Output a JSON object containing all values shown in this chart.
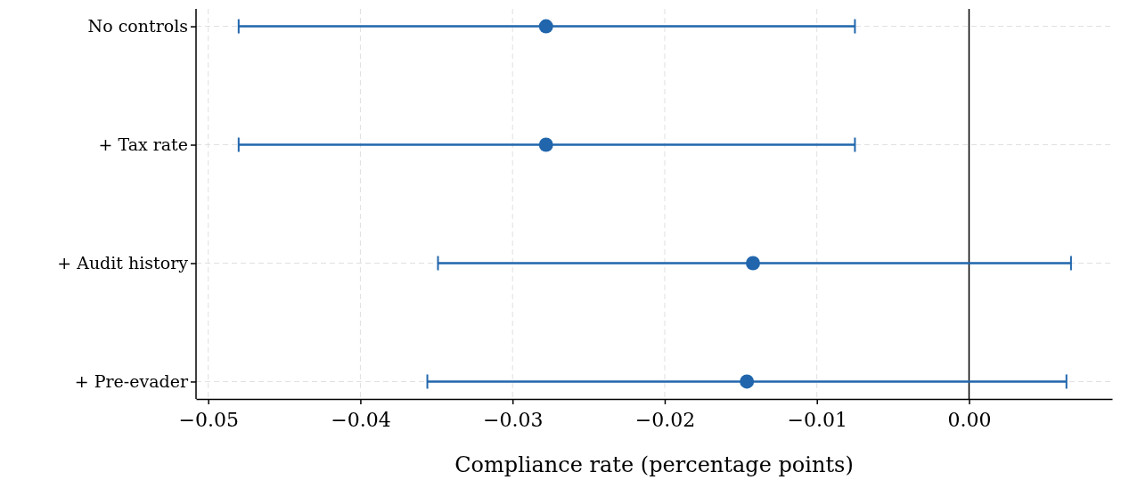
{
  "chart_data": {
    "type": "scatter",
    "orientation": "horizontal",
    "xlabel": "Compliance rate (percentage points)",
    "categories": [
      "No controls",
      "+ Tax rate",
      "+ Audit history",
      "+ Pre-evader"
    ],
    "values": [
      -0.0278,
      -0.0278,
      -0.0142,
      -0.0146
    ],
    "errors": [
      [
        -0.048,
        -0.0075
      ],
      [
        -0.048,
        -0.0075
      ],
      [
        -0.0349,
        0.0067
      ],
      [
        -0.0356,
        0.0064
      ]
    ],
    "color": "#2166ac",
    "marker": "circle",
    "grid": true,
    "xlim": [
      -0.0508,
      0.0094
    ],
    "xticks": [
      {
        "value": -0.05,
        "label": "−0.05"
      },
      {
        "value": -0.04,
        "label": "−0.04"
      },
      {
        "value": -0.03,
        "label": "−0.03"
      },
      {
        "value": -0.02,
        "label": "−0.02"
      },
      {
        "value": -0.01,
        "label": "−0.01"
      },
      {
        "value": 0,
        "label": "0.00"
      }
    ],
    "ref_lines": [
      {
        "axis": "x",
        "value": 0,
        "color": "#000000"
      }
    ]
  }
}
